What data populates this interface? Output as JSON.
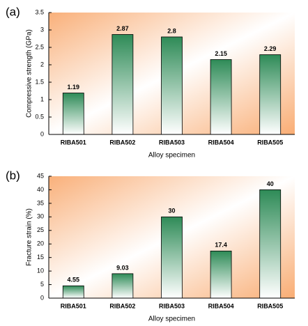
{
  "chart_data": [
    {
      "type": "bar",
      "panel_label": "(a)",
      "xlabel": "Alloy specimen",
      "ylabel": "Compressive strength (GPa)",
      "categories": [
        "RIBA501",
        "RIBA502",
        "RIBA503",
        "RIBA504",
        "RIBA505"
      ],
      "values": [
        1.19,
        2.87,
        2.8,
        2.15,
        2.29
      ],
      "color": "#2e8b57",
      "ylim": [
        0,
        3.5
      ],
      "yticks": [
        0,
        0.5,
        1,
        1.5,
        2,
        2.5,
        3,
        3.5
      ]
    },
    {
      "type": "bar",
      "panel_label": "(b)",
      "xlabel": "Alloy specimen",
      "ylabel": "Fracture strain (%)",
      "categories": [
        "RIBA501",
        "RIBA502",
        "RIBA503",
        "RIBA504",
        "RIBA505"
      ],
      "values": [
        4.55,
        9.03,
        30,
        17.4,
        40
      ],
      "color": "#2e8b57",
      "ylim": [
        0,
        45
      ],
      "yticks": [
        0,
        5,
        10,
        15,
        20,
        25,
        30,
        35,
        40,
        45
      ]
    }
  ]
}
